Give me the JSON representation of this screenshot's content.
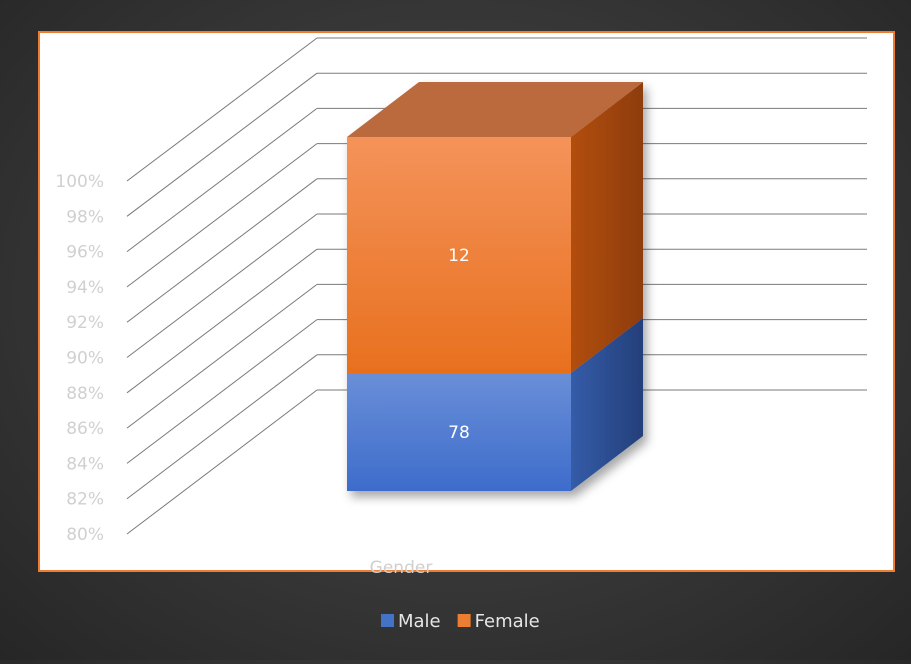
{
  "chart_data": {
    "type": "bar",
    "stacked": "percent",
    "three_d": true,
    "categories": [
      "Gender"
    ],
    "series": [
      {
        "name": "Male",
        "values": [
          78
        ],
        "color": "#4472C4"
      },
      {
        "name": "Female",
        "values": [
          12
        ],
        "color": "#ED7D31"
      }
    ],
    "y_ticks": [
      "80%",
      "82%",
      "84%",
      "86%",
      "88%",
      "90%",
      "92%",
      "94%",
      "96%",
      "98%",
      "100%"
    ],
    "ylim": [
      0.8,
      1.0
    ],
    "xlabel": "Gender",
    "legend_position": "bottom",
    "grid": true,
    "plot_area_border_color": "#ED7D31"
  }
}
